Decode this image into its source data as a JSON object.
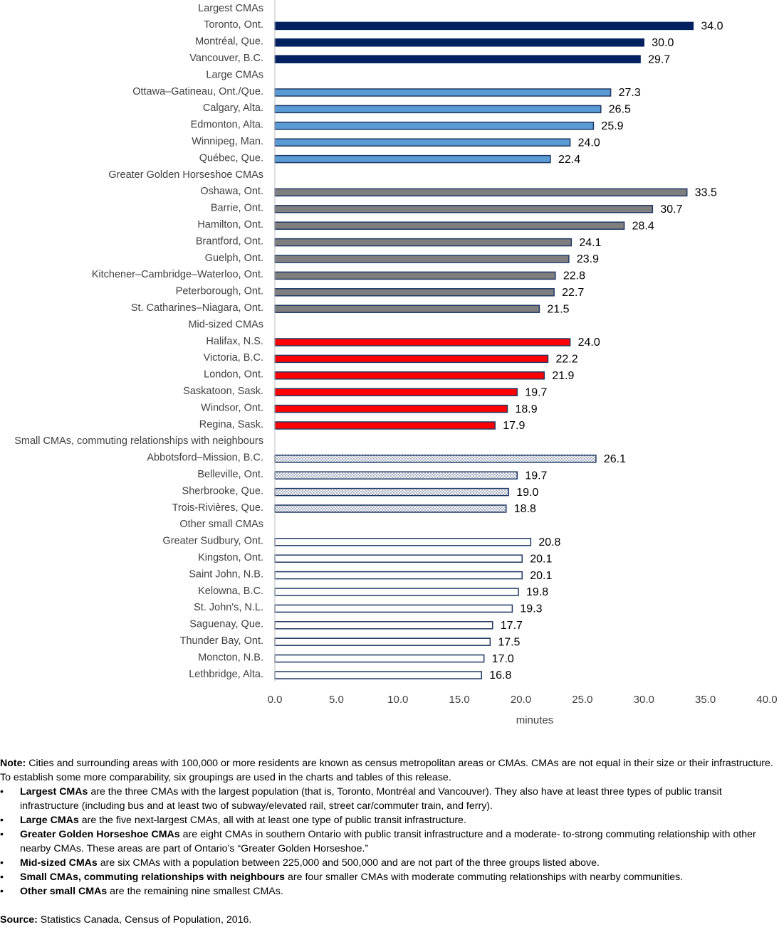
{
  "chart_data": {
    "type": "bar",
    "orientation": "horizontal",
    "categories": [
      "Largest CMAs",
      "Toronto, Ont.",
      "Montréal, Que.",
      "Vancouver, B.C.",
      "Large CMAs",
      "Ottawa–Gatineau, Ont./Que.",
      "Calgary, Alta.",
      "Edmonton, Alta.",
      "Winnipeg, Man.",
      "Québec, Que.",
      "Greater Golden Horseshoe CMAs",
      "Oshawa, Ont.",
      "Barrie, Ont.",
      "Hamilton, Ont.",
      "Brantford, Ont.",
      "Guelph, Ont.",
      "Kitchener–Cambridge–Waterloo, Ont.",
      "Peterborough, Ont.",
      "St. Catharines–Niagara, Ont.",
      "Mid-sized CMAs",
      "Halifax, N.S.",
      "Victoria, B.C.",
      "London, Ont.",
      "Saskatoon, Sask.",
      "Windsor, Ont.",
      "Regina, Sask.",
      "Small CMAs, commuting relationships with neighbours",
      "Abbotsford–Mission, B.C.",
      "Belleville, Ont.",
      "Sherbrooke, Que.",
      "Trois-Rivières, Que.",
      "Other small CMAs",
      "Greater Sudbury, Ont.",
      "Kingston, Ont.",
      "Saint John, N.B.",
      "Kelowna, B.C.",
      "St. John's, N.L.",
      "Saguenay, Que.",
      "Thunder Bay, Ont.",
      "Moncton, N.B.",
      "Lethbridge, Alta."
    ],
    "values": [
      null,
      34.0,
      30.0,
      29.7,
      null,
      27.3,
      26.5,
      25.9,
      24.0,
      22.4,
      null,
      33.5,
      30.7,
      28.4,
      24.1,
      23.9,
      22.8,
      22.7,
      21.5,
      null,
      24.0,
      22.2,
      21.9,
      19.7,
      18.9,
      17.9,
      null,
      26.1,
      19.7,
      19.0,
      18.8,
      null,
      20.8,
      20.1,
      20.1,
      19.8,
      19.3,
      17.7,
      17.5,
      17.0,
      16.8
    ],
    "value_labels": [
      null,
      "34.0",
      "30.0",
      "29.7",
      null,
      "27.3",
      "26.5",
      "25.9",
      "24.0",
      "22.4",
      null,
      "33.5",
      "30.7",
      "28.4",
      "24.1",
      "23.9",
      "22.8",
      "22.7",
      "21.5",
      null,
      "24.0",
      "22.2",
      "21.9",
      "19.7",
      "18.9",
      "17.9",
      null,
      "26.1",
      "19.7",
      "19.0",
      "18.8",
      null,
      "20.8",
      "20.1",
      "20.1",
      "19.8",
      "19.3",
      "17.7",
      "17.5",
      "17.0",
      "16.8"
    ],
    "bar_colors": [
      null,
      "#002060",
      "#002060",
      "#002060",
      null,
      "#5b9bd5",
      "#5b9bd5",
      "#5b9bd5",
      "#5b9bd5",
      "#5b9bd5",
      null,
      "#7f7f7f",
      "#7f7f7f",
      "#7f7f7f",
      "#7f7f7f",
      "#7f7f7f",
      "#7f7f7f",
      "#7f7f7f",
      "#7f7f7f",
      null,
      "#ff0000",
      "#ff0000",
      "#ff0000",
      "#ff0000",
      "#ff0000",
      "#ff0000",
      null,
      "#ffffff",
      "#ffffff",
      "#ffffff",
      "#ffffff",
      null,
      "#ffffff",
      "#ffffff",
      "#ffffff",
      "#ffffff",
      "#ffffff",
      "#ffffff",
      "#ffffff",
      "#ffffff",
      "#ffffff"
    ],
    "bar_patterns": [
      null,
      "solid",
      "solid",
      "solid",
      null,
      "solid",
      "solid",
      "solid",
      "solid",
      "solid",
      null,
      "solid",
      "solid",
      "solid",
      "solid",
      "solid",
      "solid",
      "solid",
      "solid",
      null,
      "solid",
      "solid",
      "solid",
      "solid",
      "solid",
      "solid",
      null,
      "dotted",
      "dotted",
      "dotted",
      "dotted",
      null,
      "solid",
      "solid",
      "solid",
      "solid",
      "solid",
      "solid",
      "solid",
      "solid",
      "solid"
    ],
    "outline_color": "#1f3864",
    "xlim": [
      0,
      40
    ],
    "xticks": [
      {
        "value": 0,
        "label": "0.0"
      },
      {
        "value": 5,
        "label": "5.0"
      },
      {
        "value": 10,
        "label": "10.0"
      },
      {
        "value": 15,
        "label": "15.0"
      },
      {
        "value": 20,
        "label": "20.0"
      },
      {
        "value": 25,
        "label": "25.0"
      },
      {
        "value": 30,
        "label": "30.0"
      },
      {
        "value": 35,
        "label": "35.0"
      },
      {
        "value": 40,
        "label": "40.0"
      }
    ],
    "x_label": "minutes",
    "grid": false
  },
  "note": {
    "label": "Note:",
    "text": "Cities and surrounding areas with 100,000 or more residents are known as census metropolitan areas or CMAs. CMAs are not equal in their size or their infrastructure. To establish some more comparability, six groupings are used in the charts and tables of this release.",
    "bullets": [
      {
        "bold": "Largest CMAs",
        "text": "are the three CMAs with the largest population (that is, Toronto, Montréal and Vancouver). They also have at least three types of public transit infrastructure (including bus and at least two of subway/elevated rail, street car/commuter train, and ferry)."
      },
      {
        "bold": "Large CMAs",
        "text": "are the five next-largest CMAs, all with at least one type of public transit infrastructure."
      },
      {
        "bold": "Greater Golden Horseshoe CMAs",
        "text": "are eight CMAs in southern Ontario with public transit infrastructure and a moderate- to-strong commuting relationship with other nearby CMAs. These areas are part of Ontario’s “Greater Golden Horseshoe.”"
      },
      {
        "bold": "Mid-sized CMAs",
        "text": "are six CMAs with a population between 225,000 and 500,000 and are not part of the three groups listed above."
      },
      {
        "bold": "Small CMAs, commuting relationships with neighbours",
        "text": "are four smaller CMAs with moderate commuting relationships with nearby communities."
      },
      {
        "bold": "Other small CMAs",
        "text": "are the remaining nine smallest CMAs."
      }
    ]
  },
  "source": {
    "label": "Source:",
    "text": "Statistics Canada, Census of Population, 2016."
  }
}
